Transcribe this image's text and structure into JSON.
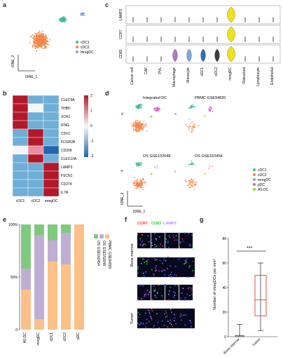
{
  "panels": {
    "a": {
      "label": "a",
      "xlabel": "tSNE_1",
      "ylabel": "tSNE_2",
      "legend": [
        "cDC1",
        "cDC2",
        "mregDC"
      ],
      "colors": {
        "cDC1": "#3dbd8f",
        "cDC2": "#f2874a",
        "mregDC": "#8aa0d8"
      }
    },
    "b": {
      "label": "b",
      "genes": [
        "CLEC9A",
        "THBD",
        "XCR1",
        "IFNG",
        "CD1C",
        "FCGR2B",
        "CD209",
        "CLEC10A",
        "LAMP3",
        "FSCN1",
        "CD274",
        "IL7R"
      ],
      "columns": [
        "cDC1",
        "cDC2",
        "mregDC"
      ],
      "scale_ticks": [
        "2",
        "1",
        "0",
        "-1",
        "-2"
      ],
      "values": [
        [
          2,
          -1,
          -1
        ],
        [
          2,
          0,
          -1
        ],
        [
          2,
          -1,
          -1
        ],
        [
          2,
          -1,
          -1
        ],
        [
          -1,
          2,
          -1
        ],
        [
          -1,
          2,
          -1
        ],
        [
          0,
          1,
          -2
        ],
        [
          -1,
          2,
          -1
        ],
        [
          -1,
          -1,
          2
        ],
        [
          -1,
          -1,
          2
        ],
        [
          -1,
          -1,
          2
        ],
        [
          -1,
          -1,
          2
        ]
      ]
    },
    "c": {
      "label": "c",
      "genes": [
        "LAMP3",
        "CCR7",
        "CD83"
      ],
      "celltypes": [
        "Cancer cell",
        "CAF",
        "PVL",
        "Macrophage",
        "Monocyte",
        "cDC1",
        "cDC2",
        "mregDC",
        "Osteoclast",
        "Lymphocyte",
        "Endothelial"
      ],
      "violin_colors": {
        "Macrophage": "#b07ac0",
        "Monocyte": "#7aa7e0",
        "cDC1": "#2a6db5",
        "cDC2": "#3a3a3a",
        "mregDC": "#f0e21a"
      }
    },
    "d": {
      "label": "d",
      "titles": [
        "Integrated DC",
        "PBMC GSE94820",
        "OS GSE152048",
        "OS GSE162454"
      ],
      "xlabel": "tSNE_1",
      "ylabel": "tSNE_2",
      "legend": [
        "cDC1",
        "cDC2",
        "mregDC",
        "pDC",
        "AS DC"
      ],
      "colors": {
        "cDC1": "#3dbd8f",
        "cDC2": "#f2874a",
        "mregDC": "#8aa0d8",
        "pDC": "#e060c0",
        "AS DC": "#9acd32"
      }
    },
    "e": {
      "label": "e"
    },
    "f": {
      "label": "f",
      "stain_labels": [
        "CCR7",
        "CD83",
        "LAMP3"
      ],
      "stain_colors": [
        "#ff3030",
        "#30d030",
        "#c080ff"
      ],
      "rows": [
        "Bone marrow",
        "Tumor"
      ]
    },
    "g": {
      "label": "g",
      "ylabel": "Number of mregDCs per mm²",
      "significance": "***",
      "y_ticks": [
        "0",
        "20",
        "40",
        "60",
        "80"
      ]
    }
  },
  "chart_data": {
    "type": "bar",
    "categories": [
      "AS DC",
      "mregDC",
      "cDC1",
      "cDC2",
      "pDC"
    ],
    "series": [
      {
        "name": "OS GSE162454",
        "values": [
          0.42,
          0.1,
          0.15,
          0.08,
          0.0
        ],
        "color": "#7fc97f"
      },
      {
        "name": "OS GSE152048",
        "values": [
          0.2,
          0.8,
          0.2,
          0.3,
          0.0
        ],
        "color": "#beaed4"
      },
      {
        "name": "PBMC GSE94820",
        "values": [
          0.38,
          0.1,
          0.65,
          0.62,
          1.0
        ],
        "color": "#fdc086"
      }
    ],
    "y_ticks": [
      "0",
      "50%",
      "100%"
    ],
    "ylim": [
      0,
      1
    ]
  }
}
